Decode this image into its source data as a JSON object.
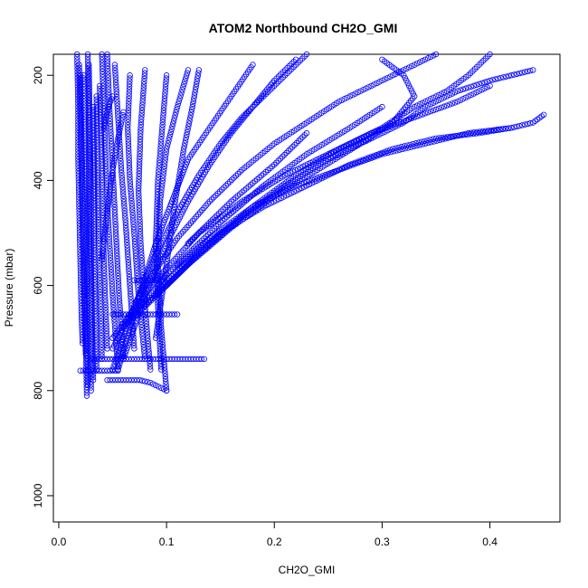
{
  "chart_data": {
    "type": "scatter",
    "title": "ATOM2 Northbound CH2O_GMI",
    "xlabel": "CH2O_GMI",
    "ylabel": "Pressure (mbar)",
    "xlim": [
      -0.005,
      0.465
    ],
    "ylim": [
      1050,
      160
    ],
    "y_inverted": true,
    "grid": false,
    "legend": "none",
    "point_color": "#0000ff",
    "marker": "open-circle",
    "x_ticks": [
      0.0,
      0.1,
      0.2,
      0.3,
      0.4
    ],
    "x_tick_labels": [
      "0.0",
      "0.1",
      "0.2",
      "0.3",
      "0.4"
    ],
    "y_ticks": [
      200,
      400,
      600,
      800,
      1000
    ],
    "y_tick_labels": [
      "200",
      "400",
      "600",
      "800",
      "1000"
    ],
    "series": [
      {
        "x": [
          0.022,
          0.021,
          0.02,
          0.019,
          0.018,
          0.018,
          0.017
        ],
        "y": [
          710,
          650,
          560,
          460,
          360,
          260,
          160
        ]
      },
      {
        "x": [
          0.025,
          0.024,
          0.023,
          0.022,
          0.021,
          0.02,
          0.019
        ],
        "y": [
          730,
          660,
          580,
          480,
          380,
          280,
          180
        ]
      },
      {
        "x": [
          0.026,
          0.025,
          0.024,
          0.023,
          0.022,
          0.021,
          0.02
        ],
        "y": [
          810,
          700,
          600,
          500,
          400,
          300,
          200
        ]
      },
      {
        "x": [
          0.027,
          0.026,
          0.026,
          0.025,
          0.024,
          0.023
        ],
        "y": [
          790,
          700,
          600,
          480,
          340,
          200
        ]
      },
      {
        "x": [
          0.03,
          0.029,
          0.029,
          0.028,
          0.028,
          0.027
        ],
        "y": [
          800,
          700,
          600,
          460,
          330,
          160
        ]
      },
      {
        "x": [
          0.032,
          0.031,
          0.03,
          0.03,
          0.029,
          0.028
        ],
        "y": [
          780,
          680,
          560,
          440,
          320,
          180
        ]
      },
      {
        "x": [
          0.035,
          0.034,
          0.033,
          0.033,
          0.032
        ],
        "y": [
          760,
          660,
          540,
          400,
          260
        ]
      },
      {
        "x": [
          0.04,
          0.039,
          0.037,
          0.036,
          0.035
        ],
        "y": [
          740,
          640,
          520,
          380,
          240
        ]
      },
      {
        "x": [
          0.045,
          0.043,
          0.041,
          0.04,
          0.038
        ],
        "y": [
          720,
          620,
          500,
          360,
          220
        ]
      },
      {
        "x": [
          0.055,
          0.05,
          0.046,
          0.043,
          0.04
        ],
        "y": [
          760,
          620,
          480,
          340,
          160
        ]
      },
      {
        "x": [
          0.06,
          0.056,
          0.053,
          0.05,
          0.047,
          0.045
        ],
        "y": [
          740,
          620,
          500,
          380,
          260,
          160
        ]
      },
      {
        "x": [
          0.07,
          0.066,
          0.062,
          0.058,
          0.055,
          0.052
        ],
        "y": [
          720,
          600,
          480,
          380,
          280,
          180
        ]
      },
      {
        "x": [
          0.08,
          0.074,
          0.07,
          0.066,
          0.064,
          0.066
        ],
        "y": [
          740,
          620,
          500,
          400,
          300,
          200
        ]
      },
      {
        "x": [
          0.085,
          0.08,
          0.076,
          0.074,
          0.076,
          0.08
        ],
        "y": [
          760,
          640,
          520,
          420,
          300,
          190
        ]
      },
      {
        "x": [
          0.095,
          0.092,
          0.09,
          0.092,
          0.096,
          0.1
        ],
        "y": [
          760,
          640,
          520,
          400,
          300,
          200
        ]
      },
      {
        "x": [
          0.1,
          0.095,
          0.092,
          0.094,
          0.1,
          0.11,
          0.12
        ],
        "y": [
          800,
          680,
          560,
          440,
          340,
          260,
          190
        ]
      },
      {
        "x": [
          0.09,
          0.1,
          0.108,
          0.116,
          0.124,
          0.13
        ],
        "y": [
          700,
          560,
          440,
          340,
          260,
          190
        ]
      },
      {
        "x": [
          0.055,
          0.075,
          0.09,
          0.105,
          0.12,
          0.14,
          0.16,
          0.18
        ],
        "y": [
          760,
          620,
          520,
          440,
          360,
          300,
          240,
          180
        ]
      },
      {
        "x": [
          0.06,
          0.08,
          0.1,
          0.12,
          0.14,
          0.16,
          0.18,
          0.2,
          0.22
        ],
        "y": [
          740,
          620,
          520,
          440,
          370,
          310,
          260,
          210,
          170
        ]
      },
      {
        "x": [
          0.05,
          0.07,
          0.09,
          0.11,
          0.13,
          0.15,
          0.17,
          0.19,
          0.21,
          0.23
        ],
        "y": [
          760,
          640,
          540,
          460,
          390,
          330,
          280,
          240,
          200,
          160
        ]
      },
      {
        "x": [
          0.05,
          0.08,
          0.11,
          0.14,
          0.17,
          0.2,
          0.23,
          0.26,
          0.29,
          0.32,
          0.35
        ],
        "y": [
          720,
          600,
          510,
          440,
          380,
          330,
          290,
          250,
          220,
          190,
          160
        ]
      },
      {
        "x": [
          0.05,
          0.09,
          0.13,
          0.17,
          0.21,
          0.25,
          0.29,
          0.33,
          0.37,
          0.4
        ],
        "y": [
          700,
          590,
          500,
          440,
          390,
          350,
          310,
          280,
          250,
          220
        ]
      },
      {
        "x": [
          0.06,
          0.1,
          0.14,
          0.18,
          0.22,
          0.26,
          0.3,
          0.34,
          0.38,
          0.42,
          0.44,
          0.45
        ],
        "y": [
          680,
          580,
          510,
          450,
          410,
          380,
          350,
          330,
          310,
          300,
          290,
          275
        ]
      },
      {
        "x": [
          0.07,
          0.11,
          0.15,
          0.19,
          0.23,
          0.27,
          0.31,
          0.35,
          0.39,
          0.42
        ],
        "y": [
          660,
          570,
          500,
          450,
          410,
          370,
          340,
          320,
          310,
          300
        ]
      },
      {
        "x": [
          0.08,
          0.12,
          0.16,
          0.2,
          0.24,
          0.28,
          0.31,
          0.33,
          0.32,
          0.3
        ],
        "y": [
          640,
          560,
          490,
          430,
          380,
          330,
          290,
          240,
          200,
          170
        ]
      },
      {
        "x": [
          0.09,
          0.13,
          0.17,
          0.21,
          0.25,
          0.29,
          0.32,
          0.34,
          0.37,
          0.4,
          0.42,
          0.44
        ],
        "y": [
          620,
          540,
          470,
          410,
          360,
          320,
          290,
          260,
          230,
          210,
          200,
          190
        ]
      },
      {
        "x": [
          0.1,
          0.14,
          0.18,
          0.22,
          0.26,
          0.3,
          0.33,
          0.36,
          0.38,
          0.39,
          0.4
        ],
        "y": [
          600,
          520,
          450,
          390,
          340,
          300,
          260,
          230,
          200,
          180,
          160
        ]
      },
      {
        "x": [
          0.11,
          0.15,
          0.19,
          0.23,
          0.27,
          0.3
        ],
        "y": [
          560,
          480,
          410,
          350,
          300,
          260
        ]
      },
      {
        "x": [
          0.12,
          0.16,
          0.2,
          0.23
        ],
        "y": [
          520,
          440,
          370,
          310
        ]
      },
      {
        "x": [
          0.04,
          0.045,
          0.05,
          0.055,
          0.06
        ],
        "y": [
          550,
          460,
          380,
          320,
          270
        ]
      },
      {
        "x": [
          0.042,
          0.044,
          0.046,
          0.05
        ],
        "y": [
          300,
          280,
          260,
          240
        ]
      },
      {
        "x": [
          0.03,
          0.04,
          0.05,
          0.06,
          0.07,
          0.08,
          0.09,
          0.1,
          0.11,
          0.12,
          0.13,
          0.135
        ],
        "y": [
          740,
          740,
          740,
          740,
          740,
          740,
          740,
          740,
          740,
          740,
          740,
          740
        ]
      },
      {
        "x": [
          0.05,
          0.06,
          0.07,
          0.08,
          0.09,
          0.1,
          0.11
        ],
        "y": [
          655,
          655,
          655,
          655,
          655,
          655,
          655
        ]
      },
      {
        "x": [
          0.07,
          0.08,
          0.09,
          0.095
        ],
        "y": [
          590,
          590,
          590,
          590
        ]
      },
      {
        "x": [
          0.02,
          0.025,
          0.03,
          0.04,
          0.05,
          0.055
        ],
        "y": [
          762,
          762,
          762,
          762,
          762,
          762
        ]
      },
      {
        "x": [
          0.045,
          0.055,
          0.065,
          0.075,
          0.085,
          0.095,
          0.1
        ],
        "y": [
          780,
          780,
          780,
          780,
          785,
          795,
          800
        ]
      }
    ]
  }
}
